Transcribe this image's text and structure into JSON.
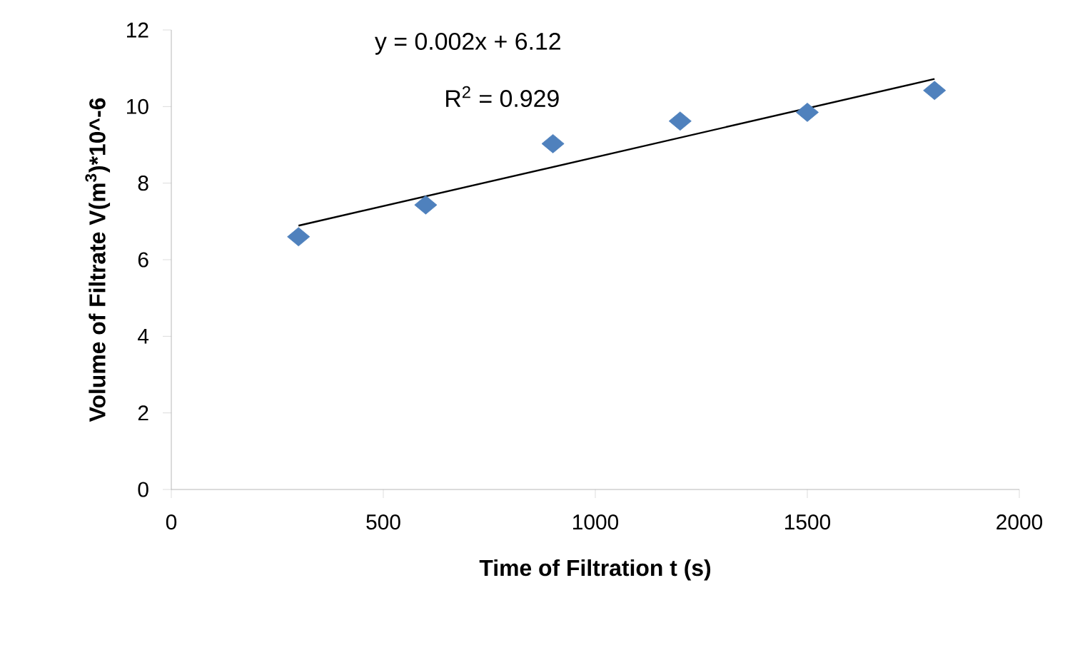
{
  "chart_data": {
    "type": "scatter",
    "xlabel": "Time of Filtration t (s)",
    "ylabel": "Volume of Filtrate V(m$^{3}$)*10^-6",
    "xlim": [
      0,
      2000
    ],
    "xticks": [
      0,
      500,
      1000,
      1500,
      2000
    ],
    "ylim": [
      0,
      12
    ],
    "yticks": [
      0,
      2,
      4,
      6,
      8,
      10,
      12
    ],
    "marker": "diamond",
    "series": [
      {
        "color": "#4f81bd",
        "x": [
          300,
          600,
          900,
          1200,
          1500,
          1800
        ],
        "values": [
          6.6,
          7.43,
          9.03,
          9.62,
          9.85,
          10.42
        ]
      },
      {
        "type": "line",
        "color": "#000000",
        "marker": "none",
        "x": [
          300,
          1800
        ],
        "values": [
          6.89,
          10.72
        ]
      }
    ],
    "annotations": [
      "y = 0.002x + 6.12",
      "R$^{2}$ = 0.929"
    ]
  }
}
